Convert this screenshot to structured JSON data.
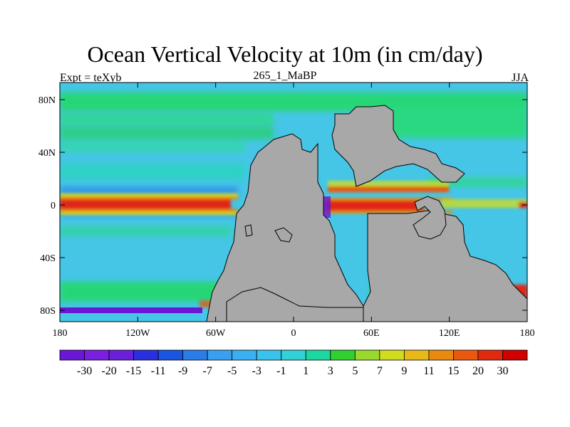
{
  "title": "Ocean Vertical Velocity at 10m (in cm/day)",
  "left_label": "Expt = teXyb",
  "center_label": "265_1_MaBP",
  "right_label": "JJA",
  "lat_ticks": [
    "80N",
    "40N",
    "0",
    "40S",
    "80S"
  ],
  "lon_ticks": [
    "180",
    "120W",
    "60W",
    "0",
    "60E",
    "120E",
    "180"
  ],
  "colorbar": {
    "labels": [
      "-30",
      "-20",
      "-15",
      "-11",
      "-9",
      "-7",
      "-5",
      "-3",
      "-1",
      "1",
      "3",
      "5",
      "7",
      "9",
      "11",
      "15",
      "20",
      "30"
    ],
    "colors": [
      "#6a17d6",
      "#7a1fe0",
      "#6a1fd8",
      "#2a2fe0",
      "#1a55e0",
      "#2a7de6",
      "#3a9ff0",
      "#3ab0f0",
      "#38c2ee",
      "#34d0d8",
      "#1cd8a0",
      "#30d030",
      "#9ad830",
      "#d0dc20",
      "#e8b818",
      "#e88a10",
      "#e85810",
      "#e02a10",
      "#d00000"
    ]
  },
  "colors": {
    "land": "#a8a8a8",
    "ocean_base": "#46c6e6",
    "subtropical_band": "#2ad882",
    "upwelling": "#e02818",
    "downwelling": "#6a17d6"
  }
}
